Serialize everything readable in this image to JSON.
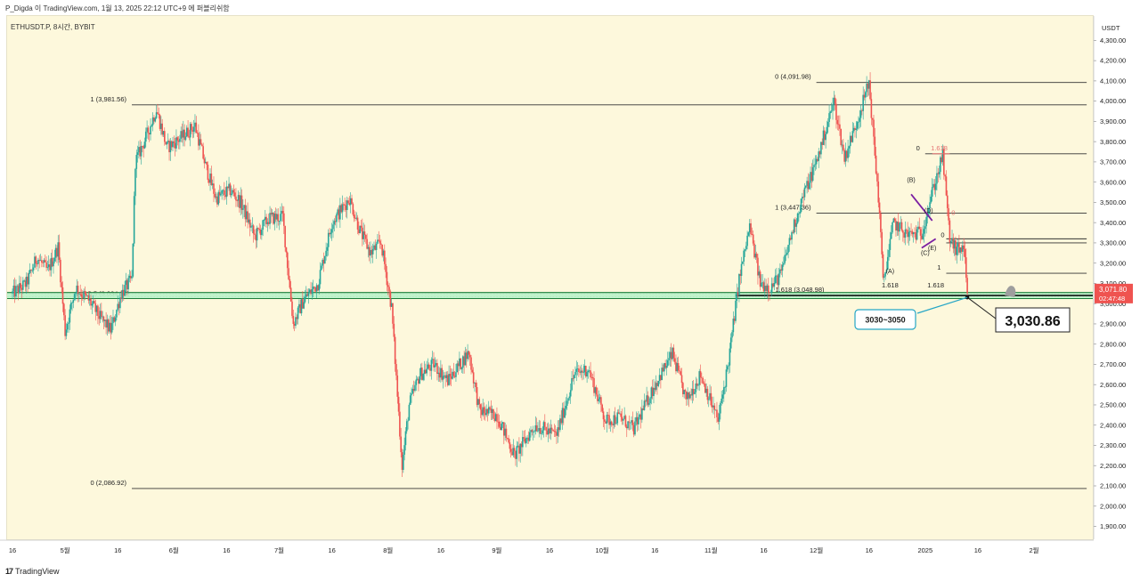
{
  "header": {
    "attribution": "P_Digda 이 TradingView.com, 1월 13, 2025 22:12 UTC+9 에 퍼블리쉬함"
  },
  "symbol": {
    "label": "ETHUSDT.P, 8시간, BYBIT"
  },
  "footer": {
    "logo_mark": "17",
    "logo_text": "TradingView"
  },
  "colors": {
    "background": "#fdf8dc",
    "up": "#26a69a",
    "down": "#ef5350",
    "line": "#333333",
    "support_zone": "#b9f2c9",
    "support_line": "#1b7f3a",
    "wave_purple": "#7b1fa2",
    "fib_red": "#e57373",
    "price_badge": "#ef5350"
  },
  "chart_data": {
    "type": "candlestick",
    "title": "",
    "xlabel": "",
    "ylabel": "",
    "currency_label": "USDT",
    "ylim": [
      1800,
      4350
    ],
    "y_ticks": [
      1900,
      2000,
      2100,
      2200,
      2300,
      2400,
      2500,
      2600,
      2700,
      2800,
      2900,
      3000,
      3100,
      3200,
      3300,
      3400,
      3500,
      3600,
      3700,
      3800,
      3900,
      4000,
      4100,
      4200,
      4300
    ],
    "y_tick_labels": [
      "1,900.00",
      "2,000.00",
      "2,100.00",
      "2,200.00",
      "2,300.00",
      "2,400.00",
      "2,500.00",
      "2,600.00",
      "2,700.00",
      "2,800.00",
      "2,900.00",
      "3,000.00",
      "3,100.00",
      "3,200.00",
      "3,300.00",
      "3,400.00",
      "3,500.00",
      "3,600.00",
      "3,700.00",
      "3,800.00",
      "3,900.00",
      "4,000.00",
      "4,100.00",
      "4,200.00",
      "4,300.00"
    ],
    "x_ticks": [
      {
        "label": "16",
        "date": "2024-04-16"
      },
      {
        "label": "5월",
        "date": "2024-05-01"
      },
      {
        "label": "16",
        "date": "2024-05-16"
      },
      {
        "label": "6월",
        "date": "2024-06-01"
      },
      {
        "label": "16",
        "date": "2024-06-16"
      },
      {
        "label": "7월",
        "date": "2024-07-01"
      },
      {
        "label": "16",
        "date": "2024-07-16"
      },
      {
        "label": "8월",
        "date": "2024-08-01"
      },
      {
        "label": "16",
        "date": "2024-08-16"
      },
      {
        "label": "9월",
        "date": "2024-09-01"
      },
      {
        "label": "16",
        "date": "2024-09-16"
      },
      {
        "label": "10월",
        "date": "2024-10-01"
      },
      {
        "label": "16",
        "date": "2024-10-16"
      },
      {
        "label": "11월",
        "date": "2024-11-01"
      },
      {
        "label": "16",
        "date": "2024-11-16"
      },
      {
        "label": "12월",
        "date": "2024-12-01"
      },
      {
        "label": "16",
        "date": "2024-12-16"
      },
      {
        "label": "2025",
        "date": "2025-01-01"
      },
      {
        "label": "16",
        "date": "2025-01-16"
      },
      {
        "label": "2월",
        "date": "2025-02-01"
      }
    ],
    "price_path": [
      {
        "date": "2024-04-16",
        "price": 3050
      },
      {
        "date": "2024-04-20",
        "price": 3100
      },
      {
        "date": "2024-04-23",
        "price": 3230
      },
      {
        "date": "2024-04-26",
        "price": 3160
      },
      {
        "date": "2024-04-29",
        "price": 3280
      },
      {
        "date": "2024-05-01",
        "price": 2860
      },
      {
        "date": "2024-05-04",
        "price": 3080
      },
      {
        "date": "2024-05-08",
        "price": 3010
      },
      {
        "date": "2024-05-11",
        "price": 2930
      },
      {
        "date": "2024-05-14",
        "price": 2870
      },
      {
        "date": "2024-05-17",
        "price": 3050
      },
      {
        "date": "2024-05-20",
        "price": 3120
      },
      {
        "date": "2024-05-21",
        "price": 3700
      },
      {
        "date": "2024-05-24",
        "price": 3820
      },
      {
        "date": "2024-05-27",
        "price": 3960
      },
      {
        "date": "2024-05-30",
        "price": 3770
      },
      {
        "date": "2024-06-03",
        "price": 3820
      },
      {
        "date": "2024-06-07",
        "price": 3880
      },
      {
        "date": "2024-06-10",
        "price": 3680
      },
      {
        "date": "2024-06-13",
        "price": 3520
      },
      {
        "date": "2024-06-17",
        "price": 3560
      },
      {
        "date": "2024-06-20",
        "price": 3500
      },
      {
        "date": "2024-06-24",
        "price": 3330
      },
      {
        "date": "2024-06-28",
        "price": 3420
      },
      {
        "date": "2024-07-02",
        "price": 3430
      },
      {
        "date": "2024-07-05",
        "price": 2900
      },
      {
        "date": "2024-07-08",
        "price": 3020
      },
      {
        "date": "2024-07-12",
        "price": 3100
      },
      {
        "date": "2024-07-16",
        "price": 3400
      },
      {
        "date": "2024-07-21",
        "price": 3520
      },
      {
        "date": "2024-07-24",
        "price": 3360
      },
      {
        "date": "2024-07-27",
        "price": 3250
      },
      {
        "date": "2024-07-30",
        "price": 3300
      },
      {
        "date": "2024-08-02",
        "price": 2980
      },
      {
        "date": "2024-08-05",
        "price": 2200
      },
      {
        "date": "2024-08-07",
        "price": 2500
      },
      {
        "date": "2024-08-10",
        "price": 2650
      },
      {
        "date": "2024-08-14",
        "price": 2700
      },
      {
        "date": "2024-08-18",
        "price": 2620
      },
      {
        "date": "2024-08-24",
        "price": 2760
      },
      {
        "date": "2024-08-27",
        "price": 2470
      },
      {
        "date": "2024-09-01",
        "price": 2450
      },
      {
        "date": "2024-09-06",
        "price": 2250
      },
      {
        "date": "2024-09-12",
        "price": 2400
      },
      {
        "date": "2024-09-18",
        "price": 2350
      },
      {
        "date": "2024-09-23",
        "price": 2650
      },
      {
        "date": "2024-09-27",
        "price": 2680
      },
      {
        "date": "2024-10-02",
        "price": 2420
      },
      {
        "date": "2024-10-06",
        "price": 2440
      },
      {
        "date": "2024-10-10",
        "price": 2380
      },
      {
        "date": "2024-10-16",
        "price": 2600
      },
      {
        "date": "2024-10-21",
        "price": 2750
      },
      {
        "date": "2024-10-25",
        "price": 2520
      },
      {
        "date": "2024-10-29",
        "price": 2650
      },
      {
        "date": "2024-11-03",
        "price": 2420
      },
      {
        "date": "2024-11-06",
        "price": 2720
      },
      {
        "date": "2024-11-09",
        "price": 3120
      },
      {
        "date": "2024-11-12",
        "price": 3380
      },
      {
        "date": "2024-11-15",
        "price": 3100
      },
      {
        "date": "2024-11-18",
        "price": 3080
      },
      {
        "date": "2024-11-21",
        "price": 3150
      },
      {
        "date": "2024-11-24",
        "price": 3350
      },
      {
        "date": "2024-11-27",
        "price": 3520
      },
      {
        "date": "2024-12-01",
        "price": 3700
      },
      {
        "date": "2024-12-06",
        "price": 4000
      },
      {
        "date": "2024-12-09",
        "price": 3720
      },
      {
        "date": "2024-12-12",
        "price": 3870
      },
      {
        "date": "2024-12-16",
        "price": 4091.98
      },
      {
        "date": "2024-12-19",
        "price": 3450
      },
      {
        "date": "2024-12-20",
        "price": 3100
      },
      {
        "date": "2024-12-23",
        "price": 3400
      },
      {
        "date": "2024-12-27",
        "price": 3340
      },
      {
        "date": "2024-12-31",
        "price": 3350
      },
      {
        "date": "2025-01-03",
        "price": 3550
      },
      {
        "date": "2025-01-06",
        "price": 3730
      },
      {
        "date": "2025-01-08",
        "price": 3320
      },
      {
        "date": "2025-01-10",
        "price": 3260
      },
      {
        "date": "2025-01-12",
        "price": 3280
      },
      {
        "date": "2025-01-13",
        "price": 3030.86
      }
    ],
    "horizontal_levels": [
      {
        "price": 4091.98,
        "label": "0 (4,091.98)",
        "x_start": "2024-12-01",
        "x_end": "2025-02-16"
      },
      {
        "price": 3981.56,
        "label": "1 (3,981.56)",
        "x_start": "2024-05-20",
        "x_end": "2025-02-16"
      },
      {
        "price": 3740,
        "label": "0",
        "x_start": "2025-01-01",
        "x_end": "2025-02-16"
      },
      {
        "price": 3447.36,
        "label": "1 (3,447.36)",
        "x_start": "2024-12-01",
        "x_end": "2025-02-16"
      },
      {
        "price": 3320,
        "label": "",
        "x_start": "2025-01-07",
        "x_end": "2025-02-16"
      },
      {
        "price": 3300,
        "label": "",
        "x_start": "2025-01-07",
        "x_end": "2025-02-16"
      },
      {
        "price": 3150,
        "label": "1",
        "x_start": "2025-01-07",
        "x_end": "2025-02-16"
      },
      {
        "price": 2086.92,
        "label": "0 (2,086.92)",
        "x_start": "2024-05-20",
        "x_end": "2025-02-16"
      }
    ],
    "dotted_levels": [
      {
        "price": 3048.98,
        "label": "1.618 (3,048.98)"
      },
      {
        "price": 3034.24,
        "label": "0.5 (3,034.24)"
      }
    ],
    "fib_labels": [
      {
        "text": "1.618",
        "price": 3740,
        "date": "2025-01-05",
        "color": "red"
      },
      {
        "text": "0",
        "price": 3420,
        "date": "2025-01-09",
        "color": "red"
      },
      {
        "text": "0",
        "price": 3310,
        "date": "2025-01-06",
        "color": "dark"
      },
      {
        "text": "1.618",
        "price": 3062,
        "date": "2024-12-22",
        "color": "dark"
      },
      {
        "text": "1.618",
        "price": 3062,
        "date": "2025-01-04",
        "color": "dark"
      }
    ],
    "wave_labels": [
      {
        "text": "(A)",
        "price": 3150,
        "date": "2024-12-22"
      },
      {
        "text": "(B)",
        "price": 3600,
        "date": "2024-12-28"
      },
      {
        "text": "(C)",
        "price": 3240,
        "date": "2025-01-01"
      },
      {
        "text": "(D)",
        "price": 3450,
        "date": "2025-01-02"
      },
      {
        "text": "(E)",
        "price": 3265,
        "date": "2025-01-03"
      }
    ],
    "support_zone": {
      "price_low": 3025,
      "price_high": 3055,
      "label": "3030~3050"
    },
    "target": {
      "price": 3030.86,
      "label": "3,030.86",
      "date": "2025-01-13"
    },
    "last_price": {
      "price": 3071.8,
      "label": "3,071.80",
      "countdown": "02:47:48"
    }
  }
}
